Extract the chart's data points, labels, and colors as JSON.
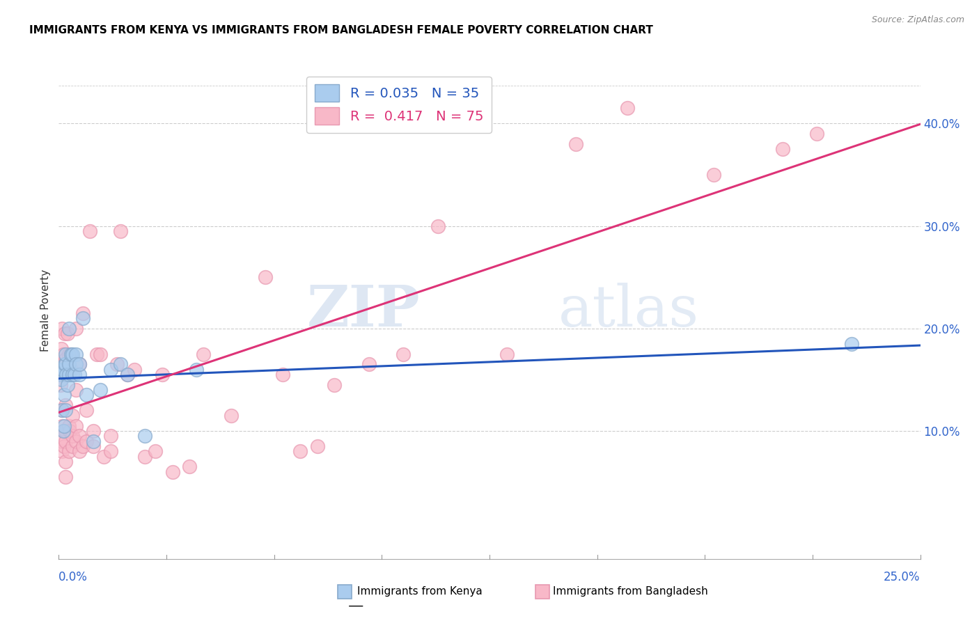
{
  "title": "IMMIGRANTS FROM KENYA VS IMMIGRANTS FROM BANGLADESH FEMALE POVERTY CORRELATION CHART",
  "source": "Source: ZipAtlas.com",
  "ylabel": "Female Poverty",
  "yticks": [
    0.1,
    0.2,
    0.3,
    0.4
  ],
  "ytick_labels": [
    "10.0%",
    "20.0%",
    "30.0%",
    "40.0%"
  ],
  "xlim": [
    0.0,
    0.25
  ],
  "ylim": [
    -0.025,
    0.46
  ],
  "kenya_R": 0.035,
  "kenya_N": 35,
  "bangladesh_R": 0.417,
  "bangladesh_N": 75,
  "kenya_color": "#aaccee",
  "kenya_edge_color": "#88aacc",
  "bangladesh_color": "#f8b8c8",
  "bangladesh_edge_color": "#e898b0",
  "kenya_line_color": "#2255bb",
  "bangladesh_line_color": "#dd3377",
  "watermark_zip": "ZIP",
  "watermark_atlas": "atlas",
  "kenya_x": [
    0.0005,
    0.0008,
    0.001,
    0.001,
    0.0012,
    0.0013,
    0.0015,
    0.0015,
    0.0018,
    0.002,
    0.002,
    0.002,
    0.0022,
    0.0025,
    0.003,
    0.003,
    0.003,
    0.0035,
    0.004,
    0.004,
    0.0045,
    0.005,
    0.005,
    0.006,
    0.006,
    0.007,
    0.008,
    0.01,
    0.012,
    0.015,
    0.018,
    0.02,
    0.025,
    0.04,
    0.23
  ],
  "kenya_y": [
    0.155,
    0.15,
    0.16,
    0.12,
    0.16,
    0.1,
    0.105,
    0.135,
    0.165,
    0.12,
    0.165,
    0.175,
    0.155,
    0.145,
    0.155,
    0.165,
    0.2,
    0.175,
    0.155,
    0.175,
    0.155,
    0.175,
    0.165,
    0.155,
    0.165,
    0.21,
    0.135,
    0.09,
    0.14,
    0.16,
    0.165,
    0.155,
    0.095,
    0.16,
    0.185
  ],
  "bangladesh_x": [
    0.0003,
    0.0005,
    0.0007,
    0.0008,
    0.001,
    0.001,
    0.001,
    0.001,
    0.001,
    0.001,
    0.0012,
    0.0013,
    0.0015,
    0.0015,
    0.0018,
    0.002,
    0.002,
    0.002,
    0.002,
    0.002,
    0.002,
    0.0022,
    0.0025,
    0.003,
    0.003,
    0.003,
    0.0032,
    0.0035,
    0.004,
    0.004,
    0.004,
    0.005,
    0.005,
    0.005,
    0.005,
    0.006,
    0.006,
    0.006,
    0.007,
    0.007,
    0.008,
    0.008,
    0.009,
    0.01,
    0.01,
    0.011,
    0.012,
    0.013,
    0.015,
    0.015,
    0.017,
    0.018,
    0.02,
    0.022,
    0.025,
    0.028,
    0.03,
    0.033,
    0.038,
    0.042,
    0.05,
    0.06,
    0.065,
    0.07,
    0.075,
    0.08,
    0.09,
    0.1,
    0.11,
    0.13,
    0.15,
    0.165,
    0.19,
    0.21,
    0.22
  ],
  "bangladesh_y": [
    0.155,
    0.145,
    0.18,
    0.165,
    0.08,
    0.09,
    0.105,
    0.12,
    0.165,
    0.2,
    0.155,
    0.175,
    0.085,
    0.1,
    0.195,
    0.055,
    0.07,
    0.09,
    0.1,
    0.125,
    0.17,
    0.155,
    0.195,
    0.08,
    0.105,
    0.175,
    0.1,
    0.16,
    0.085,
    0.095,
    0.115,
    0.09,
    0.105,
    0.14,
    0.2,
    0.08,
    0.095,
    0.165,
    0.085,
    0.215,
    0.09,
    0.12,
    0.295,
    0.085,
    0.1,
    0.175,
    0.175,
    0.075,
    0.08,
    0.095,
    0.165,
    0.295,
    0.155,
    0.16,
    0.075,
    0.08,
    0.155,
    0.06,
    0.065,
    0.175,
    0.115,
    0.25,
    0.155,
    0.08,
    0.085,
    0.145,
    0.165,
    0.175,
    0.3,
    0.175,
    0.38,
    0.415,
    0.35,
    0.375,
    0.39
  ]
}
